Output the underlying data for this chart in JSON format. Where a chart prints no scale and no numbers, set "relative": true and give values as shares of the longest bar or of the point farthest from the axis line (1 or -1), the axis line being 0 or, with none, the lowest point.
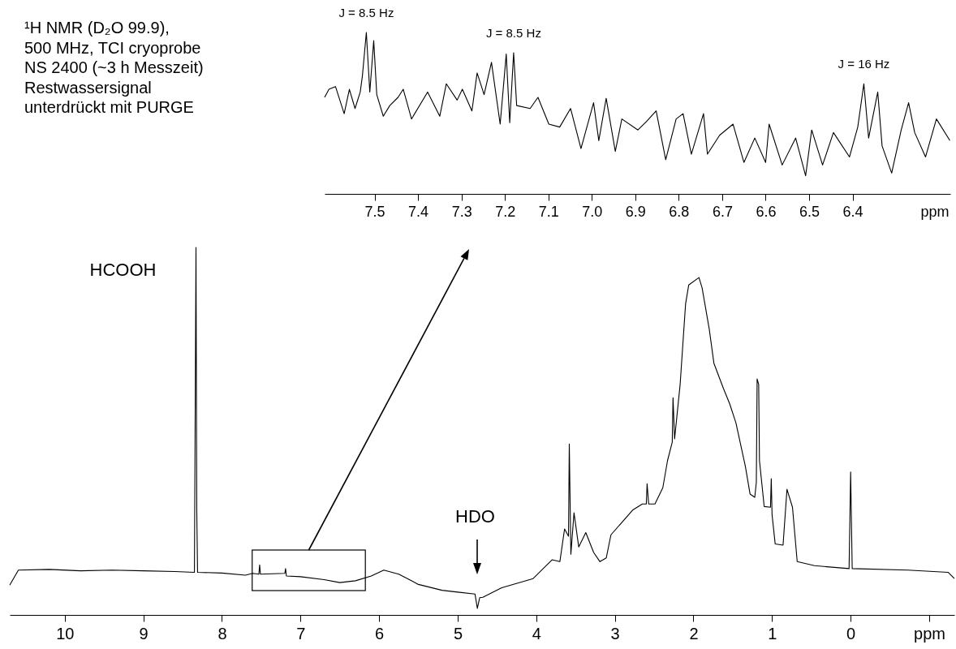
{
  "chart_data": [
    {
      "type": "line",
      "relative": true,
      "xlim": [
        10.7,
        -1.32
      ],
      "xticks": [
        10,
        9,
        8,
        7,
        6,
        5,
        4,
        3,
        2,
        1,
        0,
        {
          "value": -1,
          "label": "ppm"
        }
      ],
      "annotations": [
        "¹H NMR (D₂O 99.9),",
        "500 MHz, TCI cryoprobe",
        "NS 2400 (~3 h Messzeit)",
        "Restwassersignal",
        "unterdrückt mit PURGE",
        {
          "text": "HCOOH",
          "x": 8.33,
          "y": 1.0
        },
        "HDO"
      ],
      "series": [
        {
          "color": "#000000",
          "x": [
            10.7,
            10.59,
            10.2,
            9.8,
            9.4,
            9.0,
            8.6,
            8.35,
            8.33,
            8.32,
            8.31,
            8.0,
            7.7,
            7.61,
            7.53,
            7.52,
            7.51,
            7.2,
            7.19,
            7.18,
            7.0,
            6.7,
            6.5,
            6.3,
            6.1,
            5.94,
            5.75,
            5.5,
            5.2,
            5.0,
            4.78,
            4.75,
            4.72,
            4.68,
            4.44,
            4.04,
            3.8,
            3.7,
            3.64,
            3.59,
            3.58,
            3.56,
            3.52,
            3.46,
            3.37,
            3.27,
            3.19,
            3.11,
            3.05,
            2.77,
            2.65,
            2.6,
            2.59,
            2.57,
            2.49,
            2.39,
            2.33,
            2.27,
            2.26,
            2.24,
            2.17,
            2.1,
            2.06,
            1.93,
            1.89,
            1.8,
            1.74,
            1.62,
            1.54,
            1.46,
            1.34,
            1.28,
            1.22,
            1.2,
            1.19,
            1.17,
            1.16,
            1.1,
            1.02,
            1.01,
            1.0,
            0.96,
            0.86,
            0.81,
            0.74,
            0.68,
            0.46,
            0.02,
            0.0,
            -0.02,
            -0.73,
            -1.24,
            -1.32
          ],
          "values": [
            0.081,
            0.122,
            0.124,
            0.12,
            0.122,
            0.12,
            0.118,
            0.116,
            1.0,
            0.283,
            0.116,
            0.114,
            0.108,
            0.113,
            0.111,
            0.136,
            0.111,
            0.113,
            0.126,
            0.106,
            0.104,
            0.096,
            0.088,
            0.093,
            0.106,
            0.122,
            0.111,
            0.083,
            0.067,
            0.062,
            0.057,
            0.018,
            0.047,
            0.048,
            0.074,
            0.099,
            0.15,
            0.145,
            0.234,
            0.214,
            0.465,
            0.165,
            0.278,
            0.185,
            0.224,
            0.17,
            0.145,
            0.155,
            0.218,
            0.286,
            0.302,
            0.302,
            0.357,
            0.302,
            0.302,
            0.346,
            0.42,
            0.47,
            0.591,
            0.479,
            0.626,
            0.847,
            0.898,
            0.918,
            0.89,
            0.779,
            0.685,
            0.617,
            0.575,
            0.523,
            0.405,
            0.329,
            0.32,
            0.361,
            0.642,
            0.627,
            0.42,
            0.295,
            0.293,
            0.371,
            0.273,
            0.193,
            0.19,
            0.342,
            0.293,
            0.145,
            0.134,
            0.126,
            0.389,
            0.126,
            0.122,
            0.116,
            0.099
          ]
        }
      ]
    },
    {
      "type": "line",
      "relative": true,
      "xlim": [
        7.615,
        6.175
      ],
      "xlabel": "ppm",
      "xticks": [
        7.5,
        7.4,
        7.3,
        7.2,
        7.1,
        {
          "value": 7,
          "label": "7.0"
        },
        6.9,
        6.8,
        6.7,
        6.6,
        6.5,
        6.4
      ],
      "annotations": [
        {
          "text": "J = 8.5 Hz",
          "x": 7.519,
          "y": 1.0
        },
        {
          "text": "J = 8.5 Hz",
          "x": 7.18,
          "y": 0.874
        },
        {
          "text": "J = 16 Hz",
          "x": 6.374,
          "y": 0.682
        }
      ],
      "series": [
        {
          "color": "#000000",
          "x": [
            7.615,
            7.605,
            7.59,
            7.57,
            7.558,
            7.545,
            7.533,
            7.528,
            7.519,
            7.511,
            7.502,
            7.495,
            7.48,
            7.465,
            7.446,
            7.434,
            7.415,
            7.378,
            7.35,
            7.335,
            7.31,
            7.298,
            7.276,
            7.264,
            7.248,
            7.231,
            7.211,
            7.197,
            7.189,
            7.18,
            7.173,
            7.142,
            7.124,
            7.099,
            7.074,
            7.049,
            7.025,
            6.996,
            6.984,
            6.967,
            6.946,
            6.931,
            6.894,
            6.874,
            6.852,
            6.83,
            6.806,
            6.79,
            6.771,
            6.743,
            6.734,
            6.706,
            6.675,
            6.65,
            6.625,
            6.6,
            6.592,
            6.562,
            6.531,
            6.508,
            6.494,
            6.469,
            6.444,
            6.407,
            6.388,
            6.374,
            6.363,
            6.342,
            6.332,
            6.31,
            6.288,
            6.271,
            6.257,
            6.232,
            6.207,
            6.176
          ],
          "values": [
            0.598,
            0.648,
            0.665,
            0.497,
            0.648,
            0.529,
            0.631,
            0.732,
            1.0,
            0.631,
            0.949,
            0.615,
            0.481,
            0.547,
            0.598,
            0.648,
            0.464,
            0.631,
            0.481,
            0.682,
            0.581,
            0.648,
            0.514,
            0.749,
            0.615,
            0.815,
            0.432,
            0.866,
            0.441,
            0.874,
            0.547,
            0.529,
            0.598,
            0.432,
            0.414,
            0.529,
            0.281,
            0.565,
            0.33,
            0.592,
            0.263,
            0.464,
            0.396,
            0.449,
            0.514,
            0.212,
            0.464,
            0.497,
            0.246,
            0.497,
            0.246,
            0.363,
            0.432,
            0.195,
            0.346,
            0.195,
            0.432,
            0.179,
            0.346,
            0.112,
            0.396,
            0.179,
            0.38,
            0.229,
            0.414,
            0.682,
            0.346,
            0.631,
            0.297,
            0.129,
            0.396,
            0.565,
            0.38,
            0.229,
            0.464,
            0.33
          ]
        }
      ]
    }
  ]
}
